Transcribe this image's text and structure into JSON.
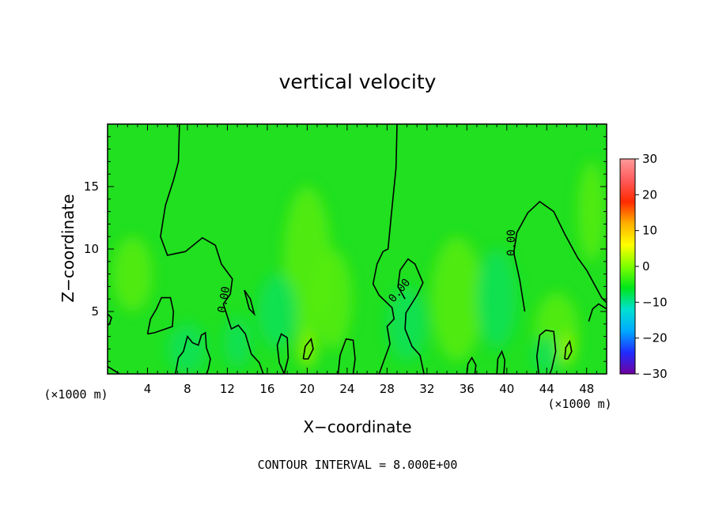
{
  "chart_data": {
    "type": "heatmap",
    "title": "vertical velocity",
    "xlabel": "X−coordinate",
    "ylabel": "Z−coordinate",
    "x_unit": "(×1000 m)",
    "xlim": [
      0,
      50
    ],
    "ylim": [
      0,
      20
    ],
    "x_ticks": [
      4,
      8,
      12,
      16,
      20,
      24,
      28,
      32,
      36,
      40,
      44,
      48
    ],
    "y_ticks": [
      5,
      10,
      15
    ],
    "colorbar": {
      "range": [
        -30,
        30
      ],
      "ticks": [
        30,
        20,
        10,
        0,
        -10,
        -20,
        -30
      ],
      "tick_labels": [
        "30",
        "20",
        "10",
        "0",
        "−10",
        "−20",
        "−30"
      ],
      "colors": [
        "#7000a0",
        "#1f2cff",
        "#00aaff",
        "#00e0d0",
        "#00e61a",
        "#7dff00",
        "#ffff00",
        "#ffb000",
        "#ff2a00",
        "#ff5a5a",
        "#ff9a9a"
      ]
    },
    "contour_labels": [
      "0.00",
      "0.00",
      "0.00"
    ],
    "contour_interval_text": "CONTOUR INTERVAL = 8.000E+00",
    "field_colors": {
      "background": "#20e020",
      "updraft": "#58ec10",
      "downdraft": "#10e058",
      "strong_updraft": "#8cf000",
      "contour": "#000000"
    }
  }
}
